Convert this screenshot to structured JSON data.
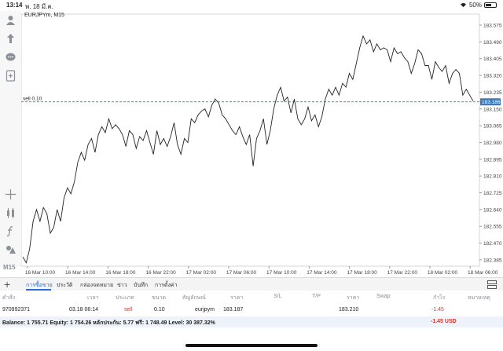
{
  "status_bar": {
    "time": "13:14",
    "date": "พ. 18 มี.ค.",
    "battery": "50%",
    "battery_level": 0.5
  },
  "chart": {
    "symbol": "EURJPYm, M15",
    "order_line_label": "sell 0.10",
    "current_price_label": "183.186",
    "timeframe_label": "M15",
    "colors": {
      "line": "#222222",
      "order_line": "#2e8b8b",
      "price_tag": "#3e7ab8",
      "grid": "#e6e6e6"
    }
  },
  "chart_data": {
    "type": "line",
    "title": "EURJPYm, M15",
    "y_ticks": [
      "183.575",
      "183.490",
      "183.405",
      "183.320",
      "183.235",
      "183.150",
      "183.065",
      "182.980",
      "182.895",
      "182.810",
      "182.725",
      "182.640",
      "182.555",
      "182.470",
      "182.385"
    ],
    "x_ticks": [
      "16 Mar 10:00",
      "16 Mar 14:00",
      "16 Mar 18:00",
      "16 Mar 22:00",
      "17 Mar 02:00",
      "17 Mar 06:00",
      "17 Mar 10:00",
      "17 Mar 14:00",
      "17 Mar 18:00",
      "17 Mar 22:00",
      "18 Mar 02:00",
      "18 Mar 06:00"
    ],
    "ylim": [
      182.34,
      183.6
    ],
    "series": [
      {
        "values": [
          182.4,
          182.37,
          182.44,
          182.58,
          182.64,
          182.58,
          182.65,
          182.62,
          182.52,
          182.55,
          182.64,
          182.58,
          182.7,
          182.75,
          182.72,
          182.78,
          182.88,
          182.93,
          182.89,
          182.97,
          183.0,
          182.93,
          183.02,
          183.06,
          183.03,
          183.1,
          183.05,
          183.07,
          183.05,
          183.02,
          182.96,
          183.04,
          183.02,
          182.95,
          183.01,
          182.99,
          183.04,
          182.98,
          182.92,
          183.04,
          182.97,
          183.0,
          182.96,
          183.01,
          183.08,
          182.97,
          182.92,
          183.0,
          182.98,
          183.1,
          183.08,
          183.12,
          183.14,
          183.15,
          183.11,
          183.17,
          183.2,
          183.18,
          183.12,
          183.1,
          183.07,
          183.04,
          183.02,
          183.06,
          183.01,
          182.97,
          183.02,
          182.86,
          183.0,
          183.04,
          183.1,
          182.97,
          183.04,
          183.15,
          183.22,
          183.26,
          183.19,
          183.21,
          183.13,
          183.2,
          183.1,
          183.07,
          183.1,
          183.16,
          183.09,
          183.12,
          183.06,
          183.11,
          183.2,
          183.25,
          183.22,
          183.26,
          183.22,
          183.28,
          183.26,
          183.33,
          183.3,
          183.38,
          183.46,
          183.52,
          183.48,
          183.5,
          183.44,
          183.48,
          183.45,
          183.46,
          183.45,
          183.39,
          183.46,
          183.43,
          183.44,
          183.41,
          183.39,
          183.33,
          183.38,
          183.45,
          183.43,
          183.37,
          183.37,
          183.3,
          183.39,
          183.36,
          183.34,
          183.37,
          183.28,
          183.33,
          183.35,
          183.33,
          183.22,
          183.25,
          183.22,
          183.19
        ]
      }
    ],
    "price_line": 183.186
  },
  "tabs": [
    "การซื้อขาย",
    "ประวัติ",
    "กล่องจดหมาย",
    "ข่าว",
    "บันทึก",
    "การตั้งค่า"
  ],
  "table": {
    "headers": [
      "ดำสั่ง",
      "เวลา",
      "ประเภท",
      "ขนาด",
      "สัญลักษณ์",
      "ราคา",
      "S/L",
      "T/P",
      "ราคา",
      "Swap",
      "กำไร",
      "หมายเหตุ"
    ],
    "rows": [
      {
        "ticket": "970992371",
        "time": "03.18 06:14",
        "type": "sell",
        "size": "0.10",
        "symbol": "eurjpym",
        "price": "183.187",
        "sl": "",
        "tp": "",
        "current": "183.210",
        "swap": "",
        "profit": "-1.45",
        "comment": ""
      }
    ]
  },
  "balance": {
    "text": "Balance: 1 755.71 Equity: 1 754.26 หลักประกัน: 5.77 ฟรี: 1 748.49 Level: 30 387.32%",
    "total": "-1.45  USD"
  }
}
